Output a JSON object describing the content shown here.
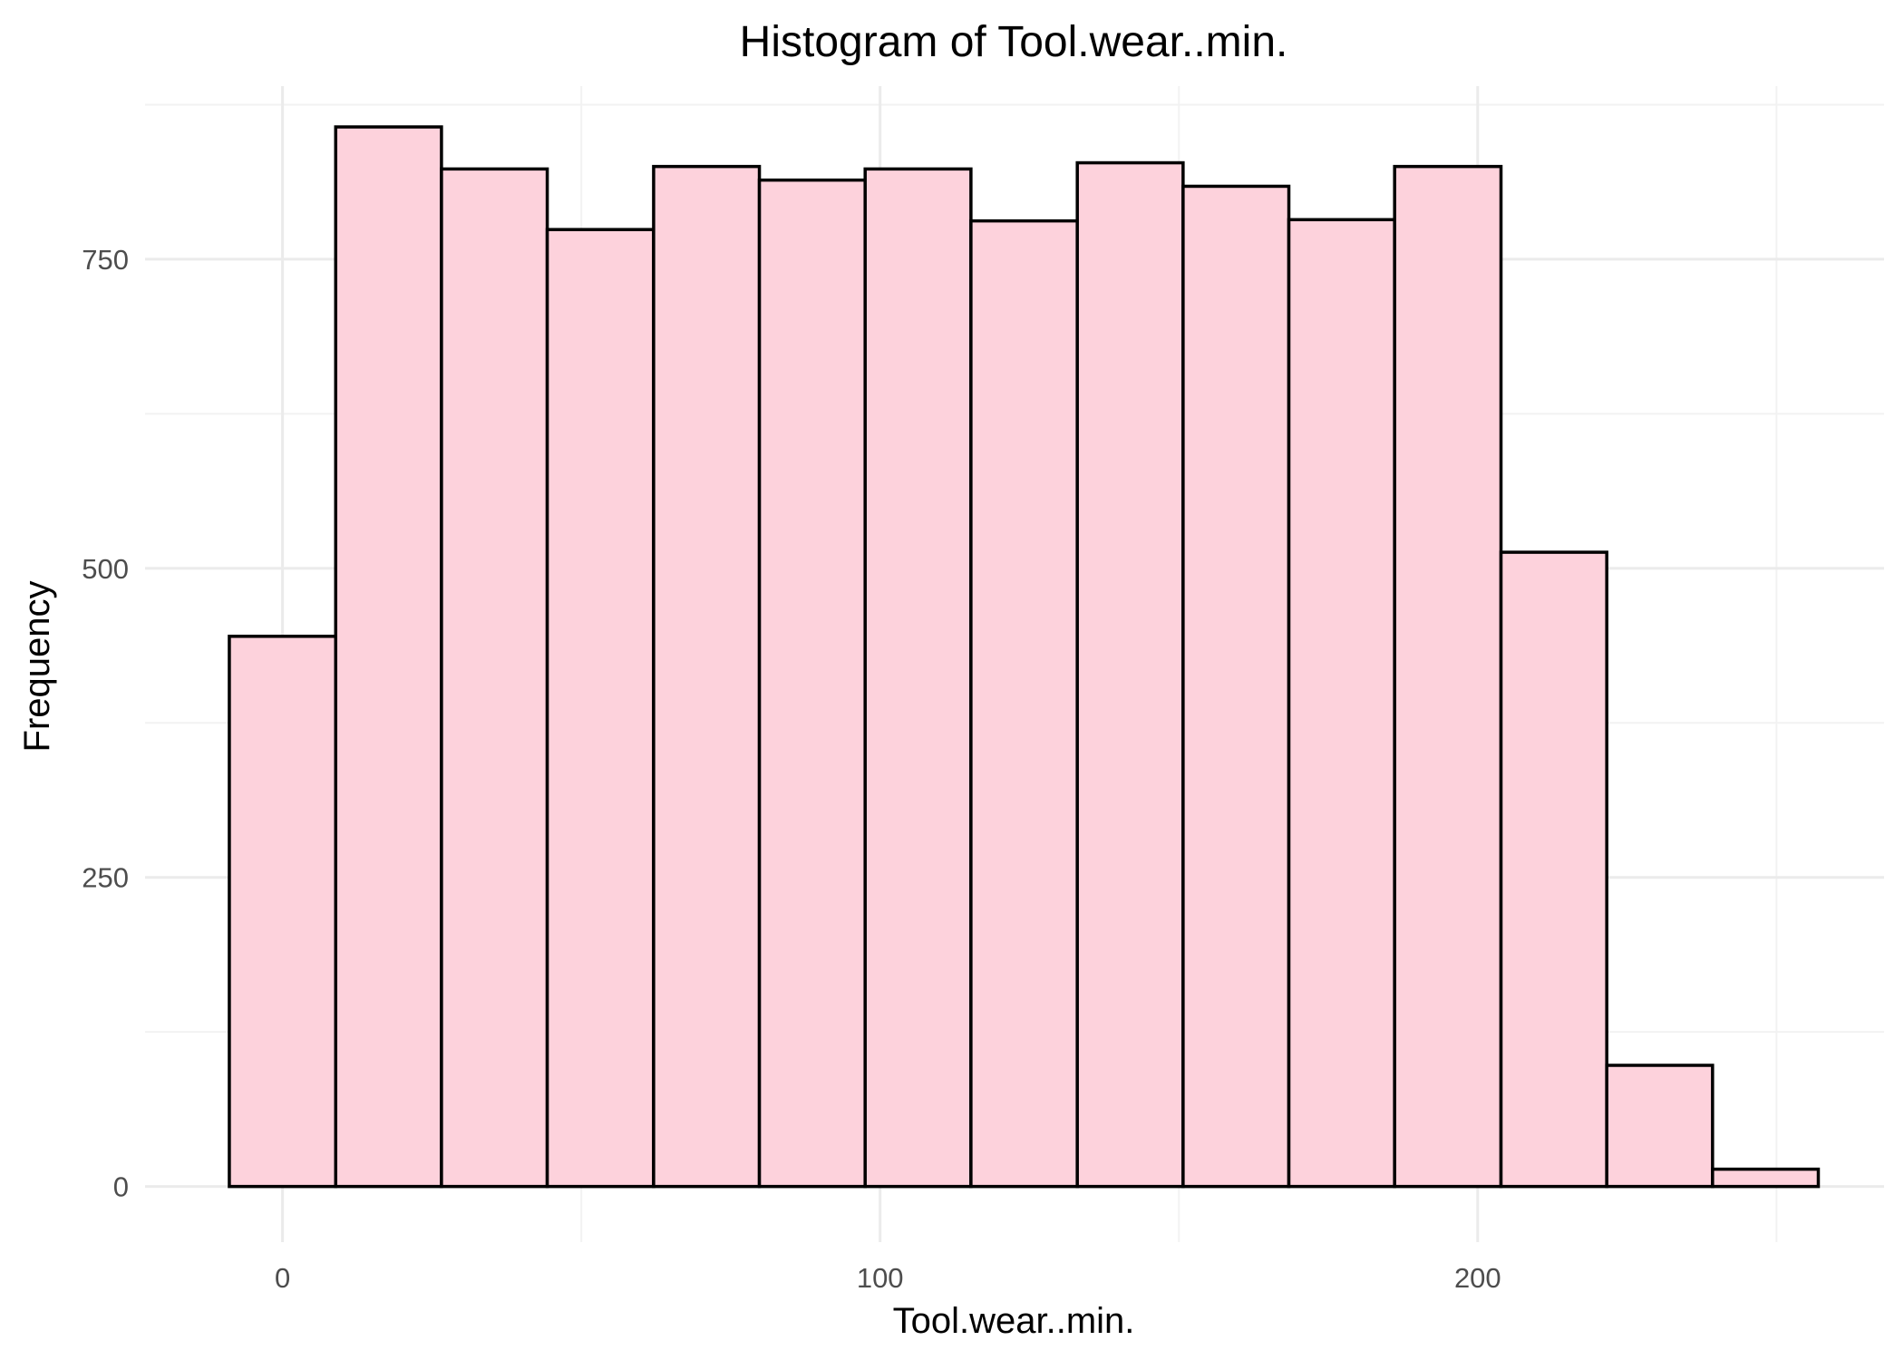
{
  "chart_data": {
    "type": "bar",
    "title": "Histogram of Tool.wear..min.",
    "xlabel": "Tool.wear..min.",
    "ylabel": "Frequency",
    "fill_color": "#fdd2dc",
    "edge_color": "#000000",
    "xlim": [
      -23,
      268
    ],
    "ylim": [
      -45,
      890
    ],
    "x_ticks": [
      0,
      100,
      200
    ],
    "y_ticks": [
      0,
      250,
      500,
      750
    ],
    "grid": true,
    "bins": [
      {
        "start": -8.9,
        "end": 8.9,
        "count": 445
      },
      {
        "start": 8.9,
        "end": 26.6,
        "count": 857
      },
      {
        "start": 26.6,
        "end": 44.3,
        "count": 823
      },
      {
        "start": 44.3,
        "end": 62.1,
        "count": 774
      },
      {
        "start": 62.1,
        "end": 79.8,
        "count": 825
      },
      {
        "start": 79.8,
        "end": 97.5,
        "count": 814
      },
      {
        "start": 97.5,
        "end": 115.2,
        "count": 823
      },
      {
        "start": 115.2,
        "end": 133.0,
        "count": 781
      },
      {
        "start": 133.0,
        "end": 150.7,
        "count": 828
      },
      {
        "start": 150.7,
        "end": 168.4,
        "count": 809
      },
      {
        "start": 168.4,
        "end": 186.1,
        "count": 782
      },
      {
        "start": 186.1,
        "end": 203.9,
        "count": 825
      },
      {
        "start": 203.9,
        "end": 221.6,
        "count": 513
      },
      {
        "start": 221.6,
        "end": 239.3,
        "count": 98
      },
      {
        "start": 239.3,
        "end": 257.0,
        "count": 14
      }
    ]
  }
}
